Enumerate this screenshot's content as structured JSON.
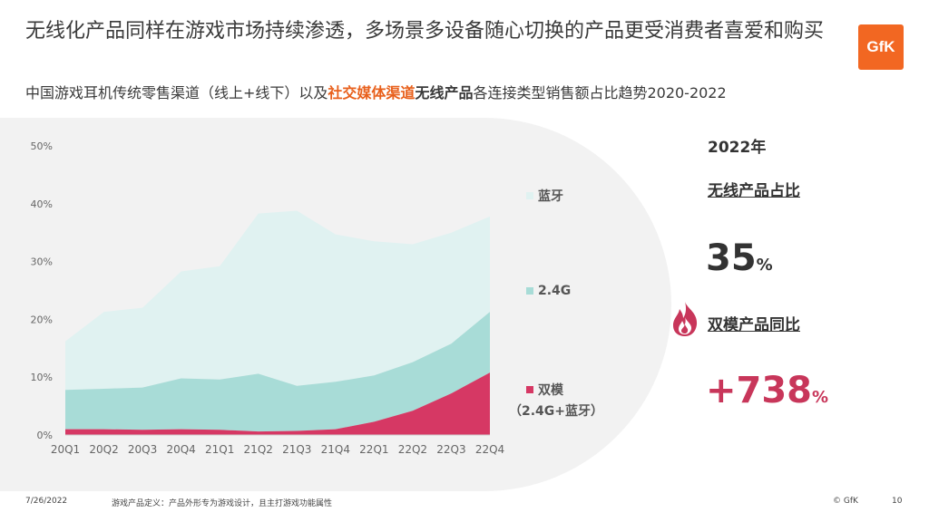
{
  "header": {
    "title": "无线化产品同样在游戏市场持续渗透，多场景多设备随心切换的产品更受消费者喜爱和购买",
    "subtitle_part1": "中国游戏耳机传统零售渠道（线上+线下）以及",
    "subtitle_part2": "社交媒体渠道",
    "subtitle_part3": "无线产品",
    "subtitle_part4": "各连接类型销售额占比趋势2020-2022",
    "logo": "GfK"
  },
  "panel": {
    "year": "2022年",
    "wireless_label": "无线产品占比",
    "wireless_value": "35",
    "wireless_unit": "%",
    "dual_label": "双模产品同比",
    "dual_value": "+738",
    "dual_unit": "%"
  },
  "legend": {
    "bluetooth": "蓝牙",
    "g24": "2.4G",
    "dual": "双模",
    "dual_sub": "（2.4G+蓝牙）"
  },
  "footer": {
    "date": "7/26/2022",
    "note": "游戏产品定义：产品外形专为游戏设计，且主打游戏功能属性",
    "copyright": "© GfK",
    "page": "10"
  },
  "colors": {
    "bluetooth": "#e0f2f1",
    "g24": "#a8dcd7",
    "dual": "#d63864",
    "accent_orange": "#e8601c",
    "accent_red": "#c8365a"
  },
  "chart_data": {
    "type": "area",
    "stacked": true,
    "categories": [
      "20Q1",
      "20Q2",
      "20Q3",
      "20Q4",
      "21Q1",
      "21Q2",
      "21Q3",
      "21Q4",
      "22Q1",
      "22Q2",
      "22Q3",
      "22Q4"
    ],
    "series": [
      {
        "name": "双模",
        "values": [
          1.0,
          1.0,
          0.9,
          1.0,
          0.9,
          0.6,
          0.7,
          1.0,
          2.3,
          4.2,
          7.2,
          10.8
        ]
      },
      {
        "name": "2.4G",
        "values": [
          6.8,
          7.0,
          7.3,
          8.8,
          8.7,
          10.0,
          7.8,
          8.2,
          8.0,
          8.4,
          8.6,
          10.5
        ]
      },
      {
        "name": "蓝牙",
        "values": [
          8.4,
          13.3,
          13.8,
          18.5,
          19.6,
          27.7,
          30.3,
          25.5,
          23.2,
          20.4,
          19.2,
          16.5
        ]
      }
    ],
    "yticks": [
      "0%",
      "10%",
      "20%",
      "30%",
      "40%",
      "50%"
    ],
    "ylim": [
      0,
      50
    ]
  }
}
